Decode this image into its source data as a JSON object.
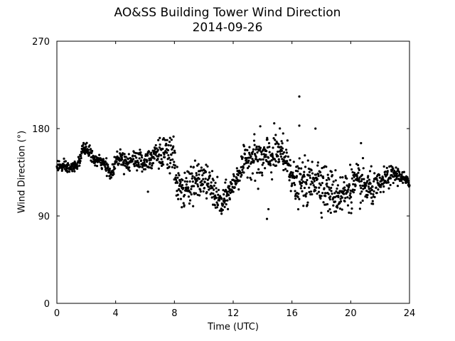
{
  "chart_data": {
    "type": "scatter",
    "title": "AO&SS Building Tower Wind Direction",
    "subtitle": "2014-09-26",
    "xlabel": "Time (UTC)",
    "ylabel": "Wind Direction (°)",
    "xlim": [
      0,
      24
    ],
    "ylim": [
      0,
      270
    ],
    "xticks": [
      0,
      4,
      8,
      12,
      16,
      20,
      24
    ],
    "yticks": [
      0,
      90,
      180,
      270
    ],
    "grid": false,
    "marker_color": "#000000",
    "trend": [
      [
        0.0,
        142
      ],
      [
        0.5,
        140
      ],
      [
        1.0,
        139
      ],
      [
        1.5,
        145
      ],
      [
        1.8,
        160
      ],
      [
        2.2,
        157
      ],
      [
        2.5,
        148
      ],
      [
        3.0,
        146
      ],
      [
        3.4,
        140
      ],
      [
        3.7,
        132
      ],
      [
        4.0,
        147
      ],
      [
        4.3,
        152
      ],
      [
        4.7,
        146
      ],
      [
        5.0,
        147
      ],
      [
        5.5,
        148
      ],
      [
        5.9,
        145
      ],
      [
        6.3,
        150
      ],
      [
        6.7,
        157
      ],
      [
        7.0,
        154
      ],
      [
        7.5,
        152
      ],
      [
        7.9,
        152
      ],
      [
        8.2,
        125
      ],
      [
        8.6,
        112
      ],
      [
        9.0,
        125
      ],
      [
        9.5,
        125
      ],
      [
        10.0,
        128
      ],
      [
        10.4,
        122
      ],
      [
        10.8,
        112
      ],
      [
        11.2,
        100
      ],
      [
        11.6,
        112
      ],
      [
        12.0,
        122
      ],
      [
        12.5,
        138
      ],
      [
        13.0,
        150
      ],
      [
        13.5,
        152
      ],
      [
        14.0,
        148
      ],
      [
        14.5,
        150
      ],
      [
        15.0,
        155
      ],
      [
        15.5,
        150
      ],
      [
        15.9,
        140
      ],
      [
        16.2,
        120
      ],
      [
        16.7,
        125
      ],
      [
        17.2,
        122
      ],
      [
        17.6,
        132
      ],
      [
        18.0,
        125
      ],
      [
        18.5,
        115
      ],
      [
        19.0,
        113
      ],
      [
        19.5,
        113
      ],
      [
        20.0,
        120
      ],
      [
        20.5,
        122
      ],
      [
        21.0,
        120
      ],
      [
        21.5,
        117
      ],
      [
        22.0,
        122
      ],
      [
        22.5,
        130
      ],
      [
        23.0,
        133
      ],
      [
        23.5,
        130
      ],
      [
        24.0,
        122
      ]
    ],
    "spread": [
      [
        0.0,
        3
      ],
      [
        3.0,
        3
      ],
      [
        6.0,
        6
      ],
      [
        8.0,
        10
      ],
      [
        11.0,
        8
      ],
      [
        12.0,
        6
      ],
      [
        13.0,
        8
      ],
      [
        14.0,
        12
      ],
      [
        15.5,
        10
      ],
      [
        16.0,
        10
      ],
      [
        18.0,
        12
      ],
      [
        21.0,
        10
      ],
      [
        22.0,
        6
      ],
      [
        24.0,
        3
      ]
    ],
    "outliers": [
      [
        14.3,
        87
      ],
      [
        14.4,
        97
      ],
      [
        16.5,
        213
      ],
      [
        16.5,
        183
      ],
      [
        17.6,
        180
      ],
      [
        20.7,
        165
      ],
      [
        15.4,
        175
      ],
      [
        6.2,
        115
      ],
      [
        8.5,
        99
      ],
      [
        11.2,
        95
      ],
      [
        13.7,
        118
      ]
    ]
  }
}
